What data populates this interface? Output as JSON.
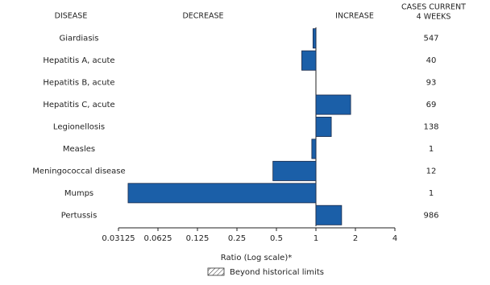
{
  "chart_data": {
    "type": "bar",
    "orientation": "horizontal",
    "category_header": "DISEASE",
    "decrease_header": "DECREASE",
    "increase_header": "INCREASE",
    "cases_header": [
      "CASES CURRENT",
      "4 WEEKS"
    ],
    "categories": [
      "Giardiasis",
      "Hepatitis A, acute",
      "Hepatitis B, acute",
      "Hepatitis C, acute",
      "Legionellosis",
      "Measles",
      "Meningococcal disease",
      "Mumps",
      "Pertussis"
    ],
    "values": [
      0.95,
      0.78,
      1.0,
      1.84,
      1.31,
      0.93,
      0.47,
      0.037,
      1.57
    ],
    "cases": [
      547,
      40,
      93,
      69,
      138,
      1,
      12,
      1,
      986
    ],
    "color": "#1b5fa8",
    "xlim": [
      0.03125,
      4
    ],
    "xticks": [
      0.03125,
      0.0625,
      0.125,
      0.25,
      0.5,
      1,
      2,
      4
    ],
    "log_scale": true,
    "xlabel": "Ratio (Log scale)*",
    "legend_label": "Beyond historical limits"
  }
}
